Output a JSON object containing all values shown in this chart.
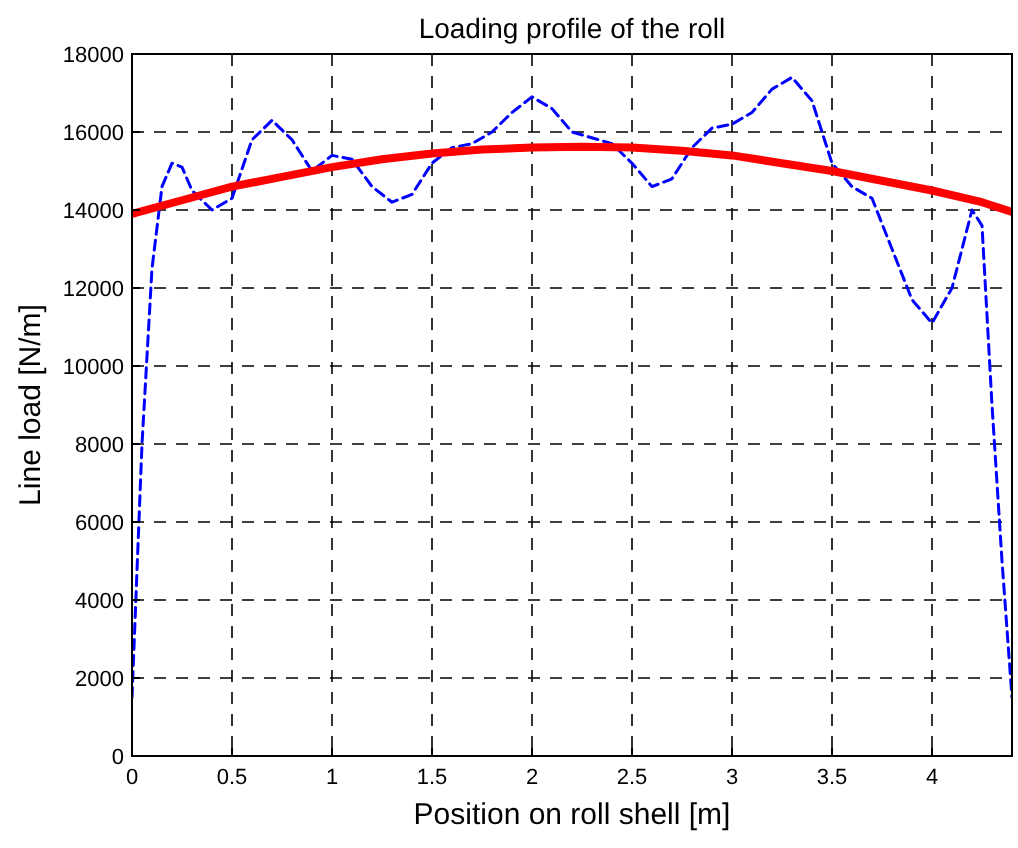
{
  "chart_data": {
    "type": "line",
    "title": "Loading profile of the roll",
    "xlabel": "Position on roll shell [m]",
    "ylabel": "Line load [N/m]",
    "xlim": [
      0,
      4.4
    ],
    "ylim": [
      0,
      18000
    ],
    "xticks": [
      0,
      0.5,
      1,
      1.5,
      2,
      2.5,
      3,
      3.5,
      4
    ],
    "yticks": [
      0,
      2000,
      4000,
      6000,
      8000,
      10000,
      12000,
      14000,
      16000,
      18000
    ],
    "grid": true,
    "series": [
      {
        "color": "#0000ff",
        "line_style": "dashed",
        "x": [
          0,
          0.05,
          0.1,
          0.15,
          0.2,
          0.25,
          0.3,
          0.4,
          0.5,
          0.6,
          0.7,
          0.8,
          0.9,
          1.0,
          1.1,
          1.2,
          1.3,
          1.4,
          1.5,
          1.6,
          1.7,
          1.8,
          1.9,
          2.0,
          2.1,
          2.2,
          2.4,
          2.5,
          2.6,
          2.7,
          2.8,
          2.9,
          3.0,
          3.1,
          3.2,
          3.3,
          3.4,
          3.5,
          3.6,
          3.7,
          3.8,
          3.9,
          4.0,
          4.1,
          4.2,
          4.25,
          4.3,
          4.35,
          4.4
        ],
        "values": [
          1500,
          8000,
          12500,
          14600,
          15200,
          15100,
          14500,
          14000,
          14300,
          15800,
          16300,
          15800,
          15000,
          15400,
          15300,
          14600,
          14200,
          14400,
          15200,
          15600,
          15700,
          16000,
          16500,
          16900,
          16600,
          16000,
          15700,
          15200,
          14600,
          14800,
          15600,
          16100,
          16200,
          16500,
          17100,
          17400,
          16800,
          15200,
          14600,
          14300,
          13000,
          11700,
          11100,
          12000,
          14000,
          13600,
          9000,
          5000,
          1500
        ]
      },
      {
        "color": "#ff0000",
        "line_style": "solid",
        "x": [
          0,
          0.25,
          0.5,
          0.75,
          1,
          1.25,
          1.5,
          1.75,
          2,
          2.25,
          2.5,
          2.75,
          3,
          3.25,
          3.5,
          3.75,
          4,
          4.25,
          4.4
        ],
        "values": [
          13900,
          14250,
          14600,
          14850,
          15100,
          15300,
          15450,
          15550,
          15600,
          15620,
          15600,
          15520,
          15400,
          15200,
          15000,
          14750,
          14500,
          14200,
          13950
        ]
      }
    ]
  }
}
